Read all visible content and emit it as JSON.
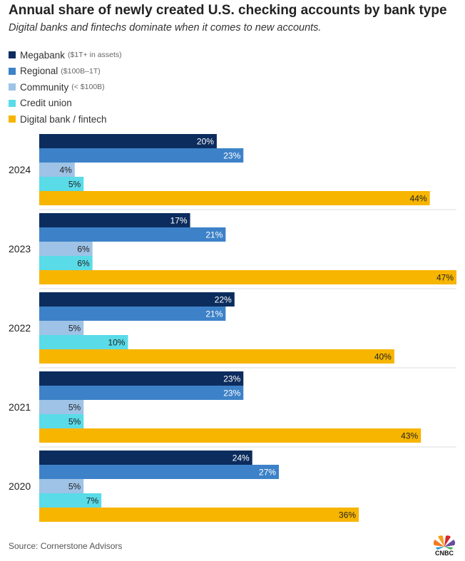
{
  "title": "Annual share of newly created U.S. checking accounts by bank type",
  "subtitle": "Digital banks and fintechs dominate when it comes to new accounts.",
  "source": "Source: Cornerstone Advisors",
  "logo_text": "CNBC",
  "chart_data": {
    "type": "bar",
    "orientation": "horizontal",
    "categories": [
      "2024",
      "2023",
      "2022",
      "2021",
      "2020"
    ],
    "value_suffix": "%",
    "series": [
      {
        "name": "Megabank",
        "note": "($1T+ in assets)",
        "color": "#0c2c5e",
        "label_color": "#ffffff",
        "values": [
          20,
          17,
          22,
          23,
          24
        ]
      },
      {
        "name": "Regional",
        "note": "($100B–1T)",
        "color": "#3d82c8",
        "label_color": "#ffffff",
        "values": [
          23,
          21,
          21,
          23,
          27
        ]
      },
      {
        "name": "Community",
        "note": "(< $100B)",
        "color": "#9ec3e6",
        "label_color": "#222222",
        "values": [
          4,
          6,
          5,
          5,
          5
        ]
      },
      {
        "name": "Credit union",
        "note": "",
        "color": "#59dbe8",
        "label_color": "#222222",
        "values": [
          5,
          6,
          10,
          5,
          7
        ]
      },
      {
        "name": "Digital bank / fintech",
        "note": "",
        "color": "#f7b500",
        "label_color": "#222222",
        "values": [
          44,
          47,
          40,
          43,
          36
        ]
      }
    ],
    "xlim": [
      0,
      47
    ],
    "grid": false,
    "legend_position": "top-left"
  }
}
